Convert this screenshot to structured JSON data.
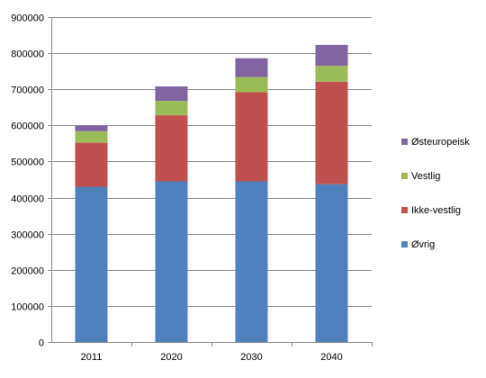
{
  "chart_data": {
    "type": "bar",
    "stacked": true,
    "title": "",
    "xlabel": "",
    "ylabel": "",
    "categories": [
      "2011",
      "2020",
      "2030",
      "2040"
    ],
    "ylim": [
      0,
      900000
    ],
    "yticks": [
      "0",
      "100000",
      "200000",
      "300000",
      "400000",
      "500000",
      "600000",
      "700000",
      "800000",
      "900000"
    ],
    "grid": true,
    "legend_position": "right",
    "series": [
      {
        "name": "Øvrig",
        "color": "#4F81BD",
        "values": [
          430000,
          445000,
          445000,
          437000
        ]
      },
      {
        "name": "Ikke-vestlig",
        "color": "#C0504D",
        "values": [
          122000,
          183000,
          247000,
          284000
        ]
      },
      {
        "name": "Vestlig",
        "color": "#9BBB59",
        "values": [
          32000,
          40000,
          42000,
          44000
        ]
      },
      {
        "name": "Østeuropeisk",
        "color": "#8064A2",
        "values": [
          16000,
          40000,
          52000,
          58000
        ]
      }
    ],
    "legend_order": [
      "Østeuropeisk",
      "Vestlig",
      "Ikke-vestlig",
      "Øvrig"
    ]
  }
}
